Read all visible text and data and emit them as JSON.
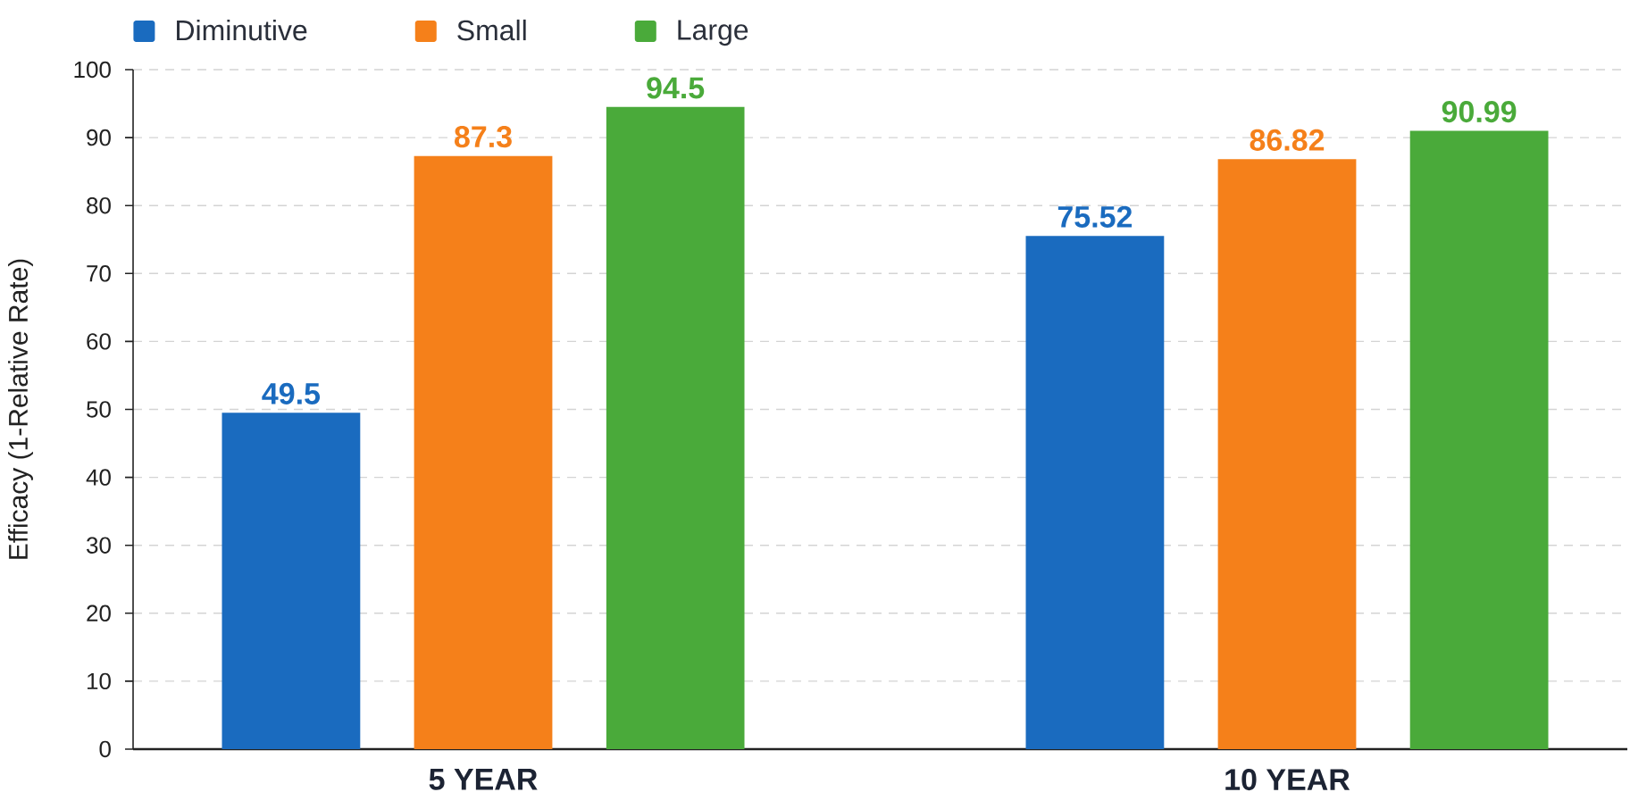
{
  "chart_data": {
    "type": "bar",
    "ylabel": "Efficacy (1-Relative Rate)",
    "categories": [
      "5 YEAR",
      "10 YEAR"
    ],
    "series": [
      {
        "name": "Diminutive",
        "color": "#1a6bbf",
        "values": [
          49.5,
          75.52
        ]
      },
      {
        "name": "Small",
        "color": "#f5801a",
        "values": [
          87.3,
          86.82
        ]
      },
      {
        "name": "Large",
        "color": "#4aaa3a",
        "values": [
          94.5,
          90.99
        ]
      }
    ],
    "ylim": [
      0,
      100
    ],
    "yticks": [
      0,
      10,
      20,
      30,
      40,
      50,
      60,
      70,
      80,
      90,
      100
    ],
    "grid": "y",
    "legend": "top left",
    "data_labels": true
  }
}
